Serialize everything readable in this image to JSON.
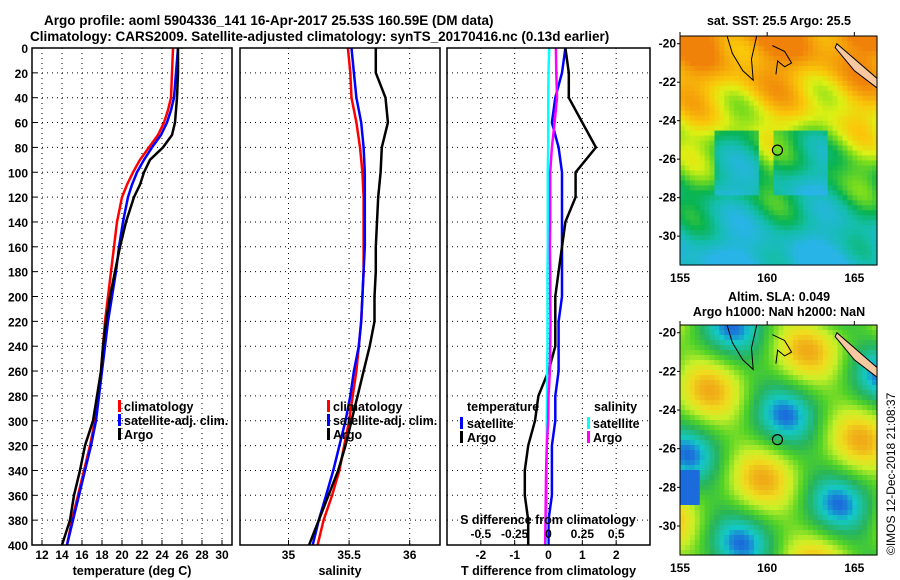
{
  "titles": {
    "line1": "Argo profile: aoml 5904336_141 16-Apr-2017 25.53S 160.59E (DM data)",
    "line2": "Climatology: CARS2009. Satellite-adjusted climatology: synTS_20170416.nc (0.13d earlier)"
  },
  "credit": "©IMOS 12-Dec-2018 21:08:37",
  "colors": {
    "climatology": "#ff0000",
    "satellite": "#0000ff",
    "argo": "#000000",
    "sal_satellite": "#00ffff",
    "sal_argo": "#ff00ff"
  },
  "chart_data": [
    {
      "type": "line",
      "name": "temperature",
      "xlabel": "temperature (deg C)",
      "ylabel": "",
      "xlim": [
        11,
        31
      ],
      "ylim": [
        400,
        0
      ],
      "xticks": [
        "12",
        "14",
        "16",
        "18",
        "20",
        "22",
        "24",
        "26",
        "28",
        "30"
      ],
      "yticks": [
        "0",
        "20",
        "40",
        "60",
        "80",
        "100",
        "120",
        "140",
        "160",
        "180",
        "200",
        "220",
        "240",
        "260",
        "280",
        "300",
        "320",
        "340",
        "360",
        "380",
        "400"
      ],
      "grid": true,
      "legend": {
        "position": "center-right",
        "entries": [
          "climatology",
          "satellite-adj. clim.",
          "Argo"
        ]
      },
      "depth": [
        0,
        20,
        40,
        50,
        60,
        70,
        80,
        90,
        100,
        110,
        120,
        140,
        160,
        180,
        200,
        220,
        240,
        260,
        280,
        300,
        320,
        340,
        360,
        380,
        400
      ],
      "series": [
        {
          "name": "climatology",
          "color": "#ff0000",
          "values": [
            25.1,
            25.0,
            24.9,
            24.6,
            24.2,
            23.6,
            22.7,
            21.8,
            21.1,
            20.5,
            20.0,
            19.5,
            19.2,
            18.9,
            18.6,
            18.3,
            18.1,
            17.9,
            17.6,
            17.3,
            16.8,
            16.2,
            15.6,
            15.0,
            14.5
          ]
        },
        {
          "name": "satellite-adj. clim.",
          "color": "#0000ff",
          "values": [
            25.6,
            25.4,
            25.2,
            24.9,
            24.5,
            23.9,
            23.0,
            22.2,
            21.5,
            21.0,
            20.6,
            20.1,
            19.7,
            19.4,
            19.0,
            18.6,
            18.3,
            18.0,
            17.7,
            17.4,
            16.9,
            16.3,
            15.7,
            15.1,
            14.5
          ]
        },
        {
          "name": "Argo",
          "color": "#000000",
          "values": [
            25.6,
            25.6,
            25.5,
            25.4,
            25.3,
            25.0,
            24.1,
            22.8,
            22.2,
            21.8,
            21.2,
            20.4,
            19.8,
            19.3,
            18.8,
            18.4,
            18.1,
            17.9,
            17.5,
            17.1,
            16.3,
            15.8,
            15.2,
            14.8,
            14.0
          ]
        }
      ]
    },
    {
      "type": "line",
      "name": "salinity",
      "xlabel": "salinity",
      "xlim": [
        34.6,
        36.25
      ],
      "ylim": [
        400,
        0
      ],
      "xticks": [
        "35",
        "35.5",
        "36"
      ],
      "grid": true,
      "legend": {
        "position": "center-right",
        "entries": [
          "climatology",
          "satellite-adj. clim.",
          "Argo"
        ]
      },
      "depth": [
        0,
        20,
        40,
        60,
        80,
        100,
        120,
        140,
        160,
        180,
        200,
        220,
        240,
        260,
        280,
        300,
        320,
        340,
        360,
        380,
        400
      ],
      "series": [
        {
          "name": "climatology",
          "color": "#ff0000",
          "values": [
            35.49,
            35.51,
            35.52,
            35.56,
            35.59,
            35.61,
            35.62,
            35.62,
            35.62,
            35.62,
            35.61,
            35.6,
            35.58,
            35.56,
            35.53,
            35.5,
            35.46,
            35.42,
            35.36,
            35.29,
            35.24
          ]
        },
        {
          "name": "satellite-adj. clim.",
          "color": "#0000ff",
          "values": [
            35.52,
            35.54,
            35.56,
            35.6,
            35.62,
            35.63,
            35.63,
            35.63,
            35.63,
            35.62,
            35.61,
            35.6,
            35.58,
            35.54,
            35.51,
            35.47,
            35.42,
            35.37,
            35.31,
            35.25,
            35.2
          ]
        },
        {
          "name": "Argo",
          "color": "#000000",
          "values": [
            35.72,
            35.72,
            35.8,
            35.82,
            35.77,
            35.76,
            35.74,
            35.73,
            35.72,
            35.72,
            35.71,
            35.71,
            35.67,
            35.62,
            35.57,
            35.52,
            35.47,
            35.41,
            35.33,
            35.25,
            35.17
          ]
        }
      ]
    },
    {
      "type": "line",
      "name": "difference",
      "xlabel": "T difference from climatology",
      "xlabel_top": "S difference from climatology",
      "xlim": [
        -3,
        3
      ],
      "xlim_top": [
        -0.75,
        0.75
      ],
      "ylim": [
        400,
        0
      ],
      "xticks": [
        "-2",
        "-1",
        "0",
        "1",
        "2"
      ],
      "xticks_top": [
        "-0.5",
        "-0.25",
        "0",
        "0.25",
        "0.5"
      ],
      "grid": true,
      "legend": {
        "position": "center",
        "temperature_title": "temperature",
        "salinity_title": "salinity",
        "temperature_entries": [
          "satellite",
          "Argo"
        ],
        "salinity_entries": [
          "satellite",
          "Argo"
        ]
      },
      "depth": [
        0,
        20,
        40,
        60,
        80,
        100,
        120,
        140,
        160,
        180,
        200,
        220,
        240,
        260,
        280,
        300,
        320,
        340,
        360,
        380,
        400
      ],
      "series": [
        {
          "name": "temperature satellite",
          "color": "#0000ff",
          "values": [
            0.5,
            0.4,
            0.2,
            0.1,
            0.3,
            0.4,
            0.4,
            0.4,
            0.4,
            0.4,
            0.4,
            0.3,
            0.3,
            0.3,
            0.2,
            0.2,
            0.1,
            0.1,
            0.1,
            0.0,
            0.0
          ]
        },
        {
          "name": "temperature Argo",
          "color": "#000000",
          "values": [
            0.5,
            0.6,
            0.6,
            1.0,
            1.4,
            0.8,
            0.8,
            0.5,
            0.4,
            0.3,
            0.2,
            0.2,
            0.2,
            0.0,
            -0.3,
            -0.4,
            -0.6,
            -0.7,
            -0.7,
            -0.6,
            -0.6
          ]
        },
        {
          "name": "salinity satellite",
          "color": "#00ffff",
          "values": [
            0.02,
            0.0,
            -0.01,
            -0.01,
            -0.01,
            -0.02,
            -0.02,
            -0.02,
            -0.02,
            -0.03,
            -0.03,
            -0.03,
            -0.03,
            -0.04,
            -0.04,
            -0.05,
            -0.05,
            -0.05,
            -0.05,
            -0.06,
            -0.06
          ]
        },
        {
          "name": "salinity Argo",
          "color": "#ff00ff",
          "values": [
            0.22,
            0.23,
            0.25,
            0.18,
            0.1,
            0.05,
            0.05,
            0.05,
            0.04,
            0.05,
            0.05,
            0.06,
            0.05,
            0.04,
            0.0,
            -0.01,
            -0.05,
            -0.07,
            -0.08,
            -0.09,
            -0.1
          ]
        }
      ]
    },
    {
      "type": "heatmap",
      "name": "sst-map",
      "title": "sat. SST: 25.5 Argo: 25.5",
      "xlim": [
        155,
        166.3
      ],
      "ylim": [
        -31.5,
        -19.6
      ],
      "xticks": [
        "155",
        "160",
        "165"
      ],
      "yticks": [
        "-20",
        "-22",
        "-24",
        "-26",
        "-28",
        "-30"
      ],
      "marker": {
        "lon": 160.59,
        "lat": -25.53
      }
    },
    {
      "type": "heatmap",
      "name": "sla-map",
      "title": "Altim. SLA: 0.049",
      "subtitle": "Argo h1000: NaN h2000: NaN",
      "xlim": [
        155,
        166.3
      ],
      "ylim": [
        -31.5,
        -19.6
      ],
      "xticks": [
        "155",
        "160",
        "165"
      ],
      "yticks": [
        "-20",
        "-22",
        "-24",
        "-26",
        "-28",
        "-30"
      ],
      "marker": {
        "lon": 160.59,
        "lat": -25.53
      }
    }
  ]
}
